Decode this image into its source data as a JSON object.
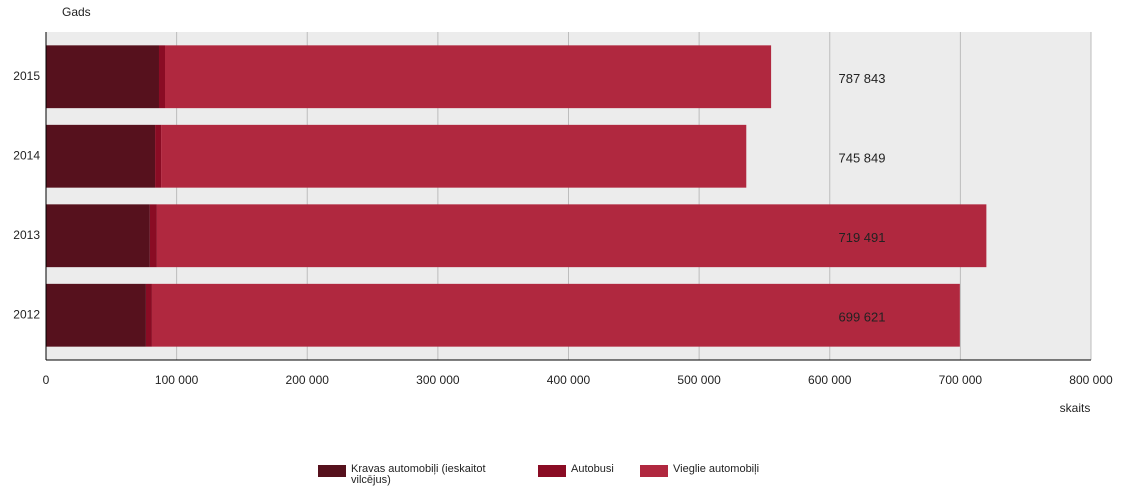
{
  "chart_data": {
    "type": "stacked-bar-horizontal",
    "y_label": "Gads",
    "x_label": "skaits",
    "categories": [
      "2015",
      "2014",
      "2013",
      "2012"
    ],
    "series": [
      {
        "name": "Kravas automobiļi (ieskaitot vilcējus)",
        "color": "#56111d",
        "values": [
          86500,
          83500,
          79500,
          76500
        ]
      },
      {
        "name": "Autobusi",
        "color": "#8a0c24",
        "values": [
          4600,
          4600,
          5400,
          4600
        ]
      },
      {
        "name": "Vieglie automobiļi",
        "color": "#b0283f",
        "values": [
          464000,
          448000,
          635000,
          618500
        ]
      }
    ],
    "annotations": [
      "787 843",
      "745 849",
      "719 491",
      "699 621"
    ],
    "xlim": [
      0,
      800000
    ],
    "xticks": [
      0,
      {
        "value": 100000,
        "label": "100 000"
      },
      {
        "value": 200000,
        "label": "200 000"
      },
      {
        "value": 300000,
        "label": "300 000"
      },
      {
        "value": 400000,
        "label": "400 000"
      },
      {
        "value": 500000,
        "label": "500 000"
      },
      {
        "value": 600000,
        "label": "600 000"
      },
      {
        "value": 700000,
        "label": "700 000"
      },
      {
        "value": 800000,
        "label": "800 000"
      }
    ],
    "grid": true
  }
}
